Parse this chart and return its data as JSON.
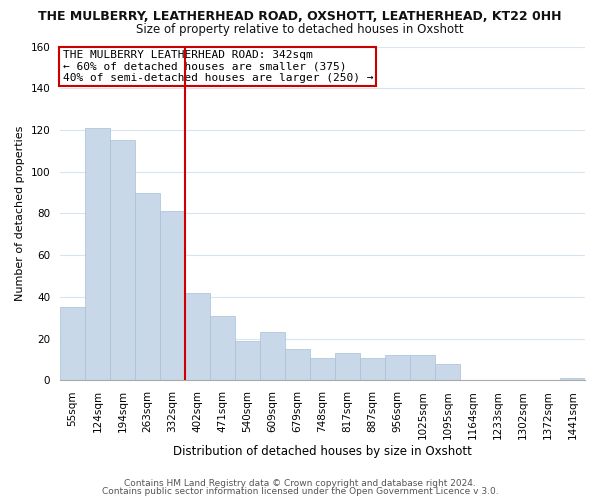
{
  "title": "THE MULBERRY, LEATHERHEAD ROAD, OXSHOTT, LEATHERHEAD, KT22 0HH",
  "subtitle": "Size of property relative to detached houses in Oxshott",
  "xlabel": "Distribution of detached houses by size in Oxshott",
  "ylabel": "Number of detached properties",
  "bar_labels": [
    "55sqm",
    "124sqm",
    "194sqm",
    "263sqm",
    "332sqm",
    "402sqm",
    "471sqm",
    "540sqm",
    "609sqm",
    "679sqm",
    "748sqm",
    "817sqm",
    "887sqm",
    "956sqm",
    "1025sqm",
    "1095sqm",
    "1164sqm",
    "1233sqm",
    "1302sqm",
    "1372sqm",
    "1441sqm"
  ],
  "bar_values": [
    35,
    121,
    115,
    90,
    81,
    42,
    31,
    19,
    23,
    15,
    11,
    13,
    11,
    12,
    12,
    8,
    0,
    0,
    0,
    0,
    1
  ],
  "bar_color": "#c8d8e8",
  "bar_edge_color": "#a8c0d8",
  "vline_x": 4.5,
  "vline_color": "#cc0000",
  "ylim": [
    0,
    160
  ],
  "yticks": [
    0,
    20,
    40,
    60,
    80,
    100,
    120,
    140,
    160
  ],
  "annotation_line1": "THE MULBERRY LEATHERHEAD ROAD: 342sqm",
  "annotation_line2": "← 60% of detached houses are smaller (375)",
  "annotation_line3": "40% of semi-detached houses are larger (250) →",
  "footer1": "Contains HM Land Registry data © Crown copyright and database right 2024.",
  "footer2": "Contains public sector information licensed under the Open Government Licence v 3.0.",
  "background_color": "#ffffff",
  "grid_color": "#d8e4f0",
  "ann_box_edge_color": "#cc0000",
  "ann_fontsize": 8.0,
  "title_fontsize": 9.0,
  "subtitle_fontsize": 8.5,
  "ylabel_fontsize": 8.0,
  "xlabel_fontsize": 8.5,
  "footer_fontsize": 6.5,
  "tick_fontsize": 7.5
}
